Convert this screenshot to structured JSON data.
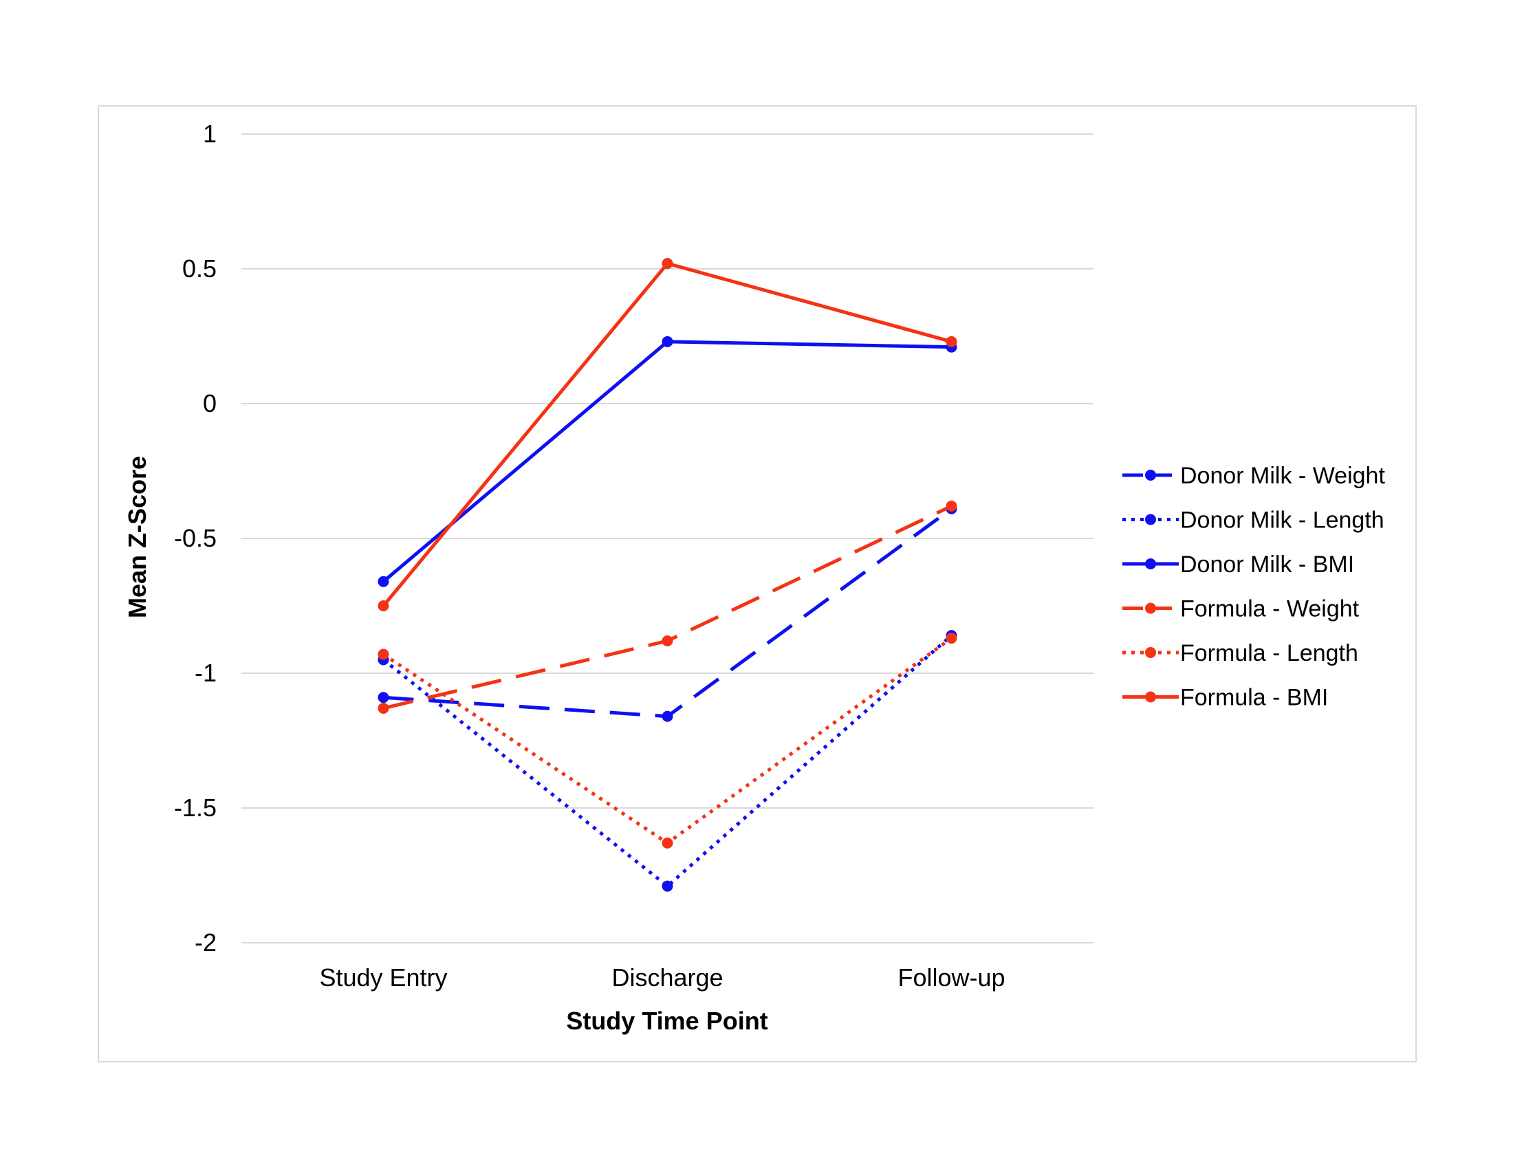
{
  "chart_data": {
    "type": "line",
    "xlabel": "Study Time Point",
    "ylabel": "Mean Z-Score",
    "categories": [
      "Study Entry",
      "Discharge",
      "Follow-up"
    ],
    "ylim": [
      -2,
      1
    ],
    "yticks": [
      1,
      0.5,
      0,
      -0.5,
      -1,
      -1.5,
      -2
    ],
    "grid": "horizontal",
    "legend_position": "right",
    "series": [
      {
        "name": "Donor Milk - Weight",
        "values": [
          -1.09,
          -1.16,
          -0.39
        ],
        "color": "#0f10f0",
        "style": "dashed"
      },
      {
        "name": "Donor Milk - Length",
        "values": [
          -0.95,
          -1.79,
          -0.86
        ],
        "color": "#0f10f0",
        "style": "dotted"
      },
      {
        "name": "Donor Milk - BMI",
        "values": [
          -0.66,
          0.23,
          0.21
        ],
        "color": "#0f10f0",
        "style": "solid"
      },
      {
        "name": "Formula - Weight",
        "values": [
          -1.13,
          -0.88,
          -0.38
        ],
        "color": "#f43314",
        "style": "dashed"
      },
      {
        "name": "Formula - Length",
        "values": [
          -0.93,
          -1.63,
          -0.87
        ],
        "color": "#f43314",
        "style": "dotted"
      },
      {
        "name": "Formula - BMI",
        "values": [
          -0.75,
          0.52,
          0.23
        ],
        "color": "#f43314",
        "style": "solid"
      }
    ]
  }
}
